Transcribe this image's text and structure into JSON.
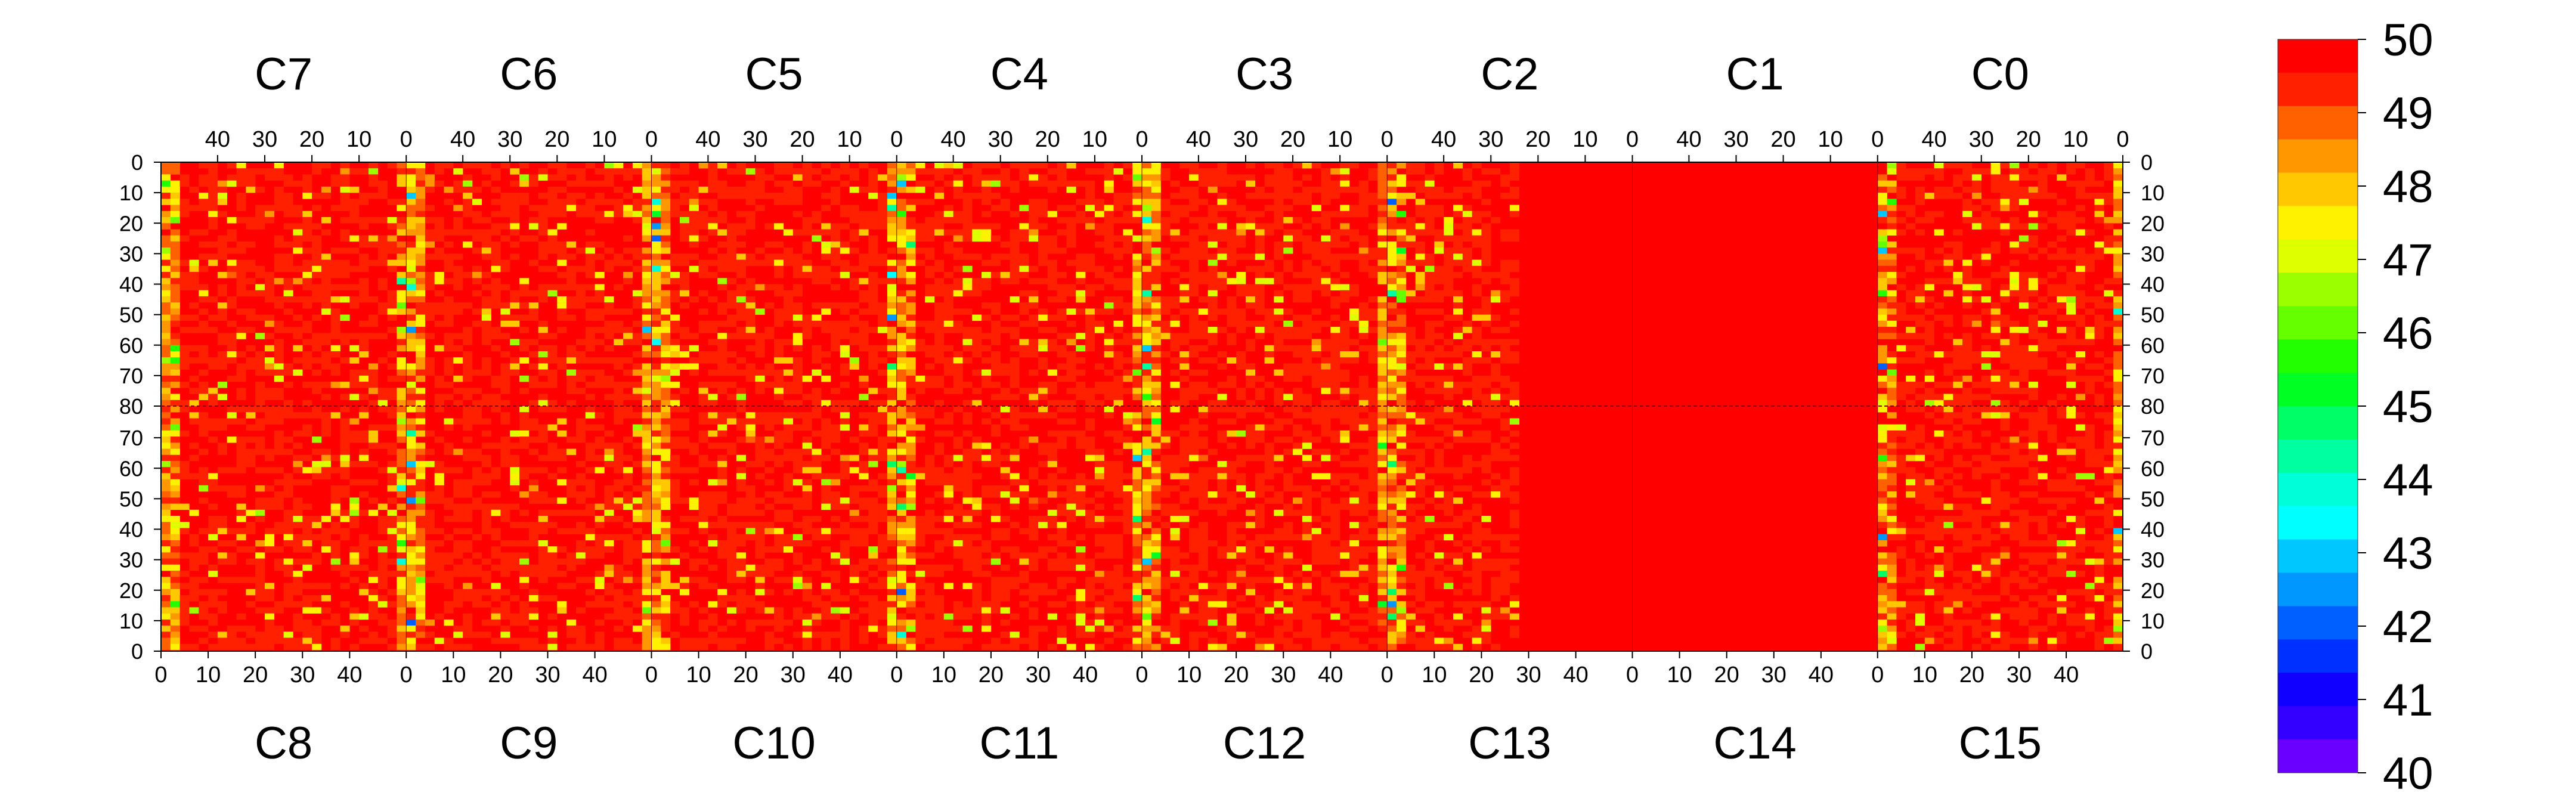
{
  "chart_data": {
    "type": "heatmap",
    "title": "",
    "xlabel": "",
    "ylabel": "",
    "top_chips": [
      "C7",
      "C6",
      "C5",
      "C4",
      "C3",
      "C2",
      "C1",
      "C0"
    ],
    "bottom_chips": [
      "C8",
      "C9",
      "C10",
      "C11",
      "C12",
      "C13",
      "C14",
      "C15"
    ],
    "top_col_ticks": [
      "40",
      "30",
      "20",
      "10",
      "0"
    ],
    "bottom_col_ticks": [
      "0",
      "10",
      "20",
      "30",
      "40"
    ],
    "top_row_ticks": [
      "0",
      "10",
      "20",
      "30",
      "40",
      "50",
      "60",
      "70",
      "80"
    ],
    "bottom_row_ticks": [
      "70",
      "60",
      "50",
      "40",
      "30",
      "20",
      "10",
      "0"
    ],
    "columns_per_chip": 52,
    "rows_per_half": 80,
    "zlim": [
      40,
      50
    ],
    "colorbar": {
      "tick_labels": [
        "50",
        "49",
        "48",
        "47",
        "46",
        "45",
        "44",
        "43",
        "42",
        "41",
        "40"
      ],
      "colors": [
        "#FF0000",
        "#FF2000",
        "#FF6000",
        "#FF9800",
        "#FFC800",
        "#FFF200",
        "#DDFF00",
        "#9CFF00",
        "#66FF00",
        "#22FF00",
        "#00FF22",
        "#00FF66",
        "#00FFA0",
        "#00FFD8",
        "#00FFFF",
        "#00C8FF",
        "#0098FF",
        "#0060FF",
        "#0030FF",
        "#1000FF",
        "#3300FF",
        "#6A00FF"
      ]
    },
    "column_profile": {
      "edge_value": 47.3,
      "interior_value": 49.6,
      "uniform_regions": [
        "C1",
        "C14",
        "C2_right_half",
        "C13_right_half"
      ],
      "uniform_value": 50
    }
  }
}
